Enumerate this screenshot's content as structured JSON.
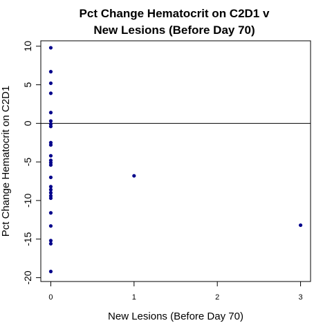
{
  "chart_data": {
    "type": "scatter",
    "title_lines": [
      "Pct Change Hematocrit on C2D1 v",
      "New Lesions (Before Day 70)"
    ],
    "xlabel": "New Lesions (Before Day 70)",
    "ylabel": "Pct Change Hematocrit on C2D1",
    "xlim": [
      -0.12,
      3.12
    ],
    "ylim": [
      -20.5,
      10.7
    ],
    "xticks": [
      0,
      1,
      2,
      3
    ],
    "yticks": [
      -20,
      -15,
      -10,
      -5,
      0,
      5,
      10
    ],
    "hline": 0,
    "point_color": "#00008B",
    "points": [
      {
        "x": 0,
        "y": 9.8
      },
      {
        "x": 0,
        "y": 6.7
      },
      {
        "x": 0,
        "y": 5.2
      },
      {
        "x": 0,
        "y": 3.9
      },
      {
        "x": 0,
        "y": 1.4
      },
      {
        "x": 0,
        "y": 0.3
      },
      {
        "x": 0,
        "y": -0.1
      },
      {
        "x": 0,
        "y": -0.4
      },
      {
        "x": 0,
        "y": -2.5
      },
      {
        "x": 0,
        "y": -2.8
      },
      {
        "x": 0,
        "y": -4.2
      },
      {
        "x": 0,
        "y": -4.8
      },
      {
        "x": 0,
        "y": -5.1
      },
      {
        "x": 0,
        "y": -5.4
      },
      {
        "x": 0,
        "y": -7.0
      },
      {
        "x": 0,
        "y": -8.2
      },
      {
        "x": 0,
        "y": -8.6
      },
      {
        "x": 0,
        "y": -9.0
      },
      {
        "x": 0,
        "y": -9.4
      },
      {
        "x": 0,
        "y": -9.7
      },
      {
        "x": 0,
        "y": -11.6
      },
      {
        "x": 0,
        "y": -13.3
      },
      {
        "x": 0,
        "y": -15.2
      },
      {
        "x": 0,
        "y": -15.6
      },
      {
        "x": 0,
        "y": -19.2
      },
      {
        "x": 1,
        "y": -6.8
      },
      {
        "x": 3,
        "y": -13.2
      }
    ]
  }
}
